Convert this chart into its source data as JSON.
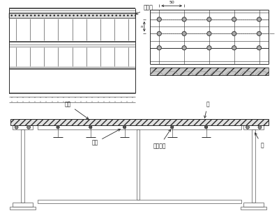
{
  "bg_color": "#ffffff",
  "line_color": "#2a2a2a",
  "text_color": "#1a1a1a",
  "label_fontsize": 5.5,
  "dim_fontsize": 4.5,
  "labels": {
    "fangzhenti": "防滑条",
    "ciji": "次助",
    "zhuji": "主助",
    "ban": "板",
    "lianjie_luoshuan": "连接螺栓",
    "liang": "梁"
  },
  "dim_50": "50",
  "dim_row": "n"
}
